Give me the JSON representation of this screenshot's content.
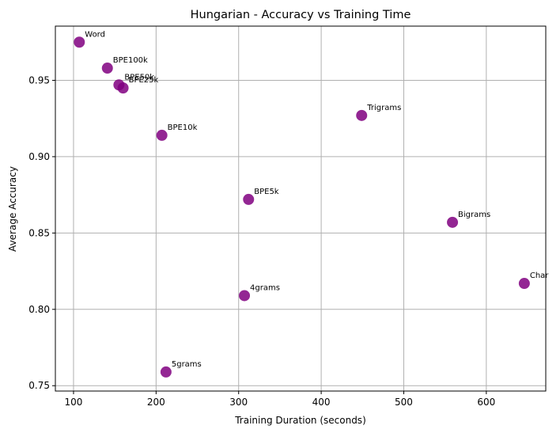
{
  "chart_data": {
    "type": "scatter",
    "title": "Hungarian - Accuracy vs Training Time",
    "xlabel": "Training Duration (seconds)",
    "ylabel": "Average Accuracy",
    "xlim": [
      78,
      672
    ],
    "ylim": [
      0.7465,
      0.9855
    ],
    "xticks": [
      100,
      200,
      300,
      400,
      500,
      600
    ],
    "yticks": [
      0.75,
      0.8,
      0.85,
      0.9,
      0.95
    ],
    "ytick_labels": [
      "0.75",
      "0.80",
      "0.85",
      "0.90",
      "0.95"
    ],
    "grid": true,
    "marker_color": "#800080",
    "points": [
      {
        "label": "Word",
        "x": 107,
        "y": 0.975
      },
      {
        "label": "BPE100k",
        "x": 141,
        "y": 0.958
      },
      {
        "label": "BPE50k",
        "x": 155,
        "y": 0.947
      },
      {
        "label": "BPE25k",
        "x": 160,
        "y": 0.945
      },
      {
        "label": "BPE10k",
        "x": 207,
        "y": 0.914
      },
      {
        "label": "Trigrams",
        "x": 449,
        "y": 0.927
      },
      {
        "label": "BPE5k",
        "x": 312,
        "y": 0.872
      },
      {
        "label": "Bigrams",
        "x": 559,
        "y": 0.857
      },
      {
        "label": "Char",
        "x": 646,
        "y": 0.817
      },
      {
        "label": "4grams",
        "x": 307,
        "y": 0.809
      },
      {
        "label": "5grams",
        "x": 212,
        "y": 0.759
      }
    ]
  }
}
